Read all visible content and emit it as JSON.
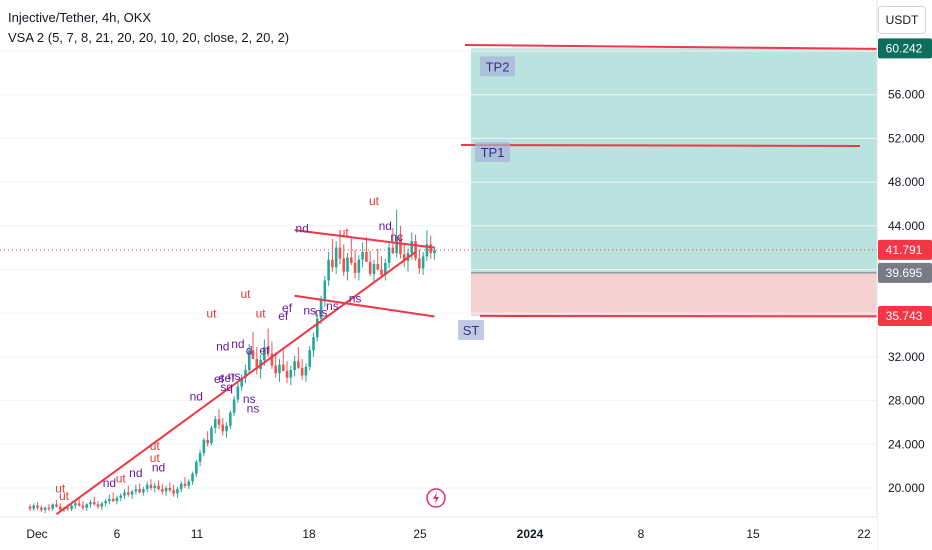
{
  "header": {
    "symbol_line": "Injective/Tether, 4h, OKX",
    "indicator_line": "VSA 2 (5, 7, 8, 21, 20, 20, 10, 20, close, 2, 20, 2)",
    "currency": "USDT"
  },
  "colors": {
    "up": "#26a69a",
    "down": "#ef5350",
    "trendline": "#f23645",
    "target_zone": "#b2dfdb",
    "stop_zone": "#f6cfd0",
    "vsa_red": "#e53935",
    "vsa_purple": "#6a1b9a"
  },
  "chart_data": {
    "type": "candlestick",
    "x_axis": {
      "ticks": [
        "Dec",
        "6",
        "11",
        "18",
        "25",
        "2024",
        "8",
        "15",
        "22"
      ]
    },
    "y_axis": {
      "ylim": [
        17.8,
        63.0
      ],
      "ticks": [
        "20.000",
        "24.000",
        "28.000",
        "32.000",
        "36.000",
        "40.000",
        "44.000",
        "48.000",
        "52.000",
        "56.000",
        "60.000"
      ]
    },
    "price_labels": [
      {
        "value": 60.242,
        "text": "60.242",
        "bg": "#0d6e5e"
      },
      {
        "value": 41.791,
        "text": "41.791",
        "bg": "#f23645"
      },
      {
        "value": 39.695,
        "text": "39.695",
        "bg": "#787b86"
      },
      {
        "value": 35.743,
        "text": "35.743",
        "bg": "#f23645"
      }
    ],
    "position": {
      "entry": 39.695,
      "target": 60.242,
      "stop": 35.743
    },
    "annotations": [
      {
        "text": "TP2",
        "value": 60.242
      },
      {
        "text": "TP1",
        "value": 51.3
      },
      {
        "text": "ST",
        "value": 35.743
      }
    ],
    "candles": [
      [
        18.3,
        18.5,
        17.9,
        18.1
      ],
      [
        18.1,
        18.6,
        17.9,
        18.4
      ],
      [
        18.4,
        18.7,
        18.0,
        18.2
      ],
      [
        18.2,
        18.4,
        17.8,
        18.0
      ],
      [
        18.0,
        18.3,
        17.7,
        18.2
      ],
      [
        18.2,
        18.5,
        17.9,
        18.1
      ],
      [
        18.1,
        18.6,
        17.9,
        18.5
      ],
      [
        18.5,
        18.9,
        18.2,
        18.3
      ],
      [
        18.3,
        18.6,
        17.9,
        18.0
      ],
      [
        18.0,
        18.3,
        17.8,
        18.2
      ],
      [
        18.2,
        18.4,
        17.9,
        18.1
      ],
      [
        18.1,
        18.5,
        17.9,
        18.4
      ],
      [
        18.4,
        18.8,
        18.1,
        18.6
      ],
      [
        18.6,
        19.1,
        18.3,
        18.4
      ],
      [
        18.4,
        18.8,
        18.0,
        18.2
      ],
      [
        18.2,
        18.6,
        17.9,
        18.5
      ],
      [
        18.5,
        18.9,
        18.2,
        18.7
      ],
      [
        18.7,
        19.2,
        18.4,
        18.5
      ],
      [
        18.5,
        18.8,
        18.1,
        18.3
      ],
      [
        18.3,
        18.7,
        18.0,
        18.6
      ],
      [
        18.6,
        19.0,
        18.3,
        18.8
      ],
      [
        18.8,
        19.4,
        18.5,
        19.0
      ],
      [
        19.0,
        19.6,
        18.7,
        18.8
      ],
      [
        18.8,
        19.3,
        18.5,
        19.1
      ],
      [
        19.1,
        19.5,
        18.8,
        19.3
      ],
      [
        19.3,
        19.9,
        19.0,
        19.6
      ],
      [
        19.6,
        20.2,
        19.2,
        19.4
      ],
      [
        19.4,
        19.8,
        19.0,
        19.7
      ],
      [
        19.7,
        20.3,
        19.4,
        19.9
      ],
      [
        19.9,
        20.4,
        19.5,
        19.6
      ],
      [
        19.6,
        20.1,
        19.3,
        19.9
      ],
      [
        19.9,
        20.6,
        19.6,
        20.3
      ],
      [
        20.3,
        20.8,
        19.8,
        20.0
      ],
      [
        20.0,
        20.5,
        19.6,
        20.2
      ],
      [
        20.2,
        20.7,
        19.8,
        19.9
      ],
      [
        19.9,
        20.4,
        19.4,
        19.7
      ],
      [
        19.7,
        20.2,
        19.3,
        20.0
      ],
      [
        20.0,
        20.5,
        19.6,
        19.8
      ],
      [
        19.8,
        20.3,
        19.2,
        19.5
      ],
      [
        19.5,
        20.1,
        19.1,
        19.9
      ],
      [
        19.9,
        20.6,
        19.6,
        20.4
      ],
      [
        20.4,
        21.0,
        20.0,
        20.2
      ],
      [
        20.2,
        20.8,
        19.9,
        20.6
      ],
      [
        20.6,
        21.5,
        20.3,
        21.3
      ],
      [
        21.3,
        22.6,
        21.0,
        22.4
      ],
      [
        22.4,
        23.5,
        22.0,
        23.2
      ],
      [
        23.2,
        24.6,
        22.9,
        24.4
      ],
      [
        24.4,
        25.2,
        23.8,
        24.1
      ],
      [
        24.1,
        25.7,
        23.9,
        25.5
      ],
      [
        25.5,
        26.6,
        25.0,
        26.3
      ],
      [
        26.3,
        27.2,
        25.4,
        25.8
      ],
      [
        25.8,
        26.4,
        24.8,
        25.2
      ],
      [
        25.2,
        26.0,
        24.6,
        25.7
      ],
      [
        25.7,
        27.1,
        25.4,
        26.9
      ],
      [
        26.9,
        28.4,
        26.6,
        28.1
      ],
      [
        28.1,
        29.6,
        27.8,
        29.3
      ],
      [
        29.3,
        30.4,
        28.9,
        30.1
      ],
      [
        30.1,
        31.3,
        29.6,
        30.8
      ],
      [
        30.8,
        33.2,
        30.5,
        32.6
      ],
      [
        32.6,
        34.3,
        31.9,
        31.8
      ],
      [
        31.8,
        32.9,
        30.4,
        30.9
      ],
      [
        30.9,
        32.2,
        30.0,
        31.7
      ],
      [
        31.7,
        33.6,
        31.2,
        32.9
      ],
      [
        32.9,
        34.6,
        32.0,
        32.3
      ],
      [
        32.3,
        33.4,
        30.9,
        31.2
      ],
      [
        31.2,
        32.4,
        30.1,
        30.5
      ],
      [
        30.5,
        31.8,
        29.7,
        31.3
      ],
      [
        31.3,
        32.6,
        30.8,
        30.7
      ],
      [
        30.7,
        31.6,
        29.6,
        30.1
      ],
      [
        30.1,
        31.2,
        29.4,
        30.8
      ],
      [
        30.8,
        32.1,
        30.2,
        31.6
      ],
      [
        31.6,
        32.9,
        30.9,
        31.0
      ],
      [
        31.0,
        31.8,
        29.9,
        30.3
      ],
      [
        30.3,
        31.4,
        29.7,
        31.1
      ],
      [
        31.1,
        33.0,
        30.8,
        32.6
      ],
      [
        32.6,
        34.2,
        32.0,
        33.8
      ],
      [
        33.8,
        35.9,
        33.4,
        35.5
      ],
      [
        35.5,
        37.6,
        35.0,
        37.2
      ],
      [
        37.2,
        39.4,
        36.6,
        39.0
      ],
      [
        39.0,
        41.6,
        38.5,
        40.9
      ],
      [
        40.9,
        42.8,
        39.8,
        40.2
      ],
      [
        40.2,
        42.6,
        39.6,
        42.0
      ],
      [
        42.0,
        43.4,
        40.5,
        41.0
      ],
      [
        41.0,
        42.3,
        39.4,
        39.8
      ],
      [
        39.8,
        41.5,
        39.0,
        41.1
      ],
      [
        41.1,
        42.9,
        40.4,
        40.6
      ],
      [
        40.6,
        41.8,
        39.2,
        39.7
      ],
      [
        39.7,
        41.3,
        39.0,
        40.9
      ],
      [
        40.9,
        42.5,
        40.2,
        41.6
      ],
      [
        41.6,
        43.0,
        40.8,
        40.7
      ],
      [
        40.7,
        41.7,
        39.4,
        39.6
      ],
      [
        39.6,
        40.9,
        38.9,
        40.5
      ],
      [
        40.5,
        41.9,
        39.9,
        40.0
      ],
      [
        40.0,
        41.2,
        39.2,
        39.5
      ],
      [
        39.5,
        41.0,
        39.0,
        40.6
      ],
      [
        40.6,
        42.4,
        40.1,
        42.0
      ],
      [
        42.0,
        43.8,
        41.4,
        41.5
      ],
      [
        41.5,
        45.5,
        41.1,
        43.0
      ],
      [
        43.0,
        44.0,
        41.0,
        41.4
      ],
      [
        41.4,
        42.3,
        40.2,
        40.8
      ],
      [
        40.8,
        41.9,
        39.8,
        41.5
      ],
      [
        41.5,
        43.4,
        40.9,
        42.6
      ],
      [
        42.6,
        43.2,
        40.8,
        41.0
      ],
      [
        41.0,
        41.8,
        39.6,
        40.1
      ],
      [
        40.1,
        41.6,
        39.5,
        41.2
      ],
      [
        41.2,
        43.6,
        40.8,
        42.3
      ],
      [
        42.3,
        43.1,
        41.0,
        41.5
      ],
      [
        41.5,
        42.1,
        40.9,
        41.79
      ]
    ],
    "vsa_labels": [
      {
        "text": "ut",
        "candle": 8,
        "value": 19.6,
        "color": "red"
      },
      {
        "text": "ut",
        "candle": 9,
        "value": 18.9,
        "color": "red"
      },
      {
        "text": "nd",
        "candle": 21,
        "value": 20.1,
        "color": "purple"
      },
      {
        "text": "ut",
        "candle": 24,
        "value": 20.5,
        "color": "red"
      },
      {
        "text": "nd",
        "candle": 28,
        "value": 21.0,
        "color": "purple"
      },
      {
        "text": "nd",
        "candle": 34,
        "value": 21.5,
        "color": "purple"
      },
      {
        "text": "ut",
        "candle": 33,
        "value": 22.4,
        "color": "red"
      },
      {
        "text": "ut",
        "candle": 33,
        "value": 23.5,
        "color": "red"
      },
      {
        "text": "nd",
        "candle": 44,
        "value": 28.0,
        "color": "purple"
      },
      {
        "text": "ut",
        "candle": 48,
        "value": 35.6,
        "color": "red"
      },
      {
        "text": "nd",
        "candle": 51,
        "value": 32.6,
        "color": "purple"
      },
      {
        "text": "nd",
        "candle": 55,
        "value": 32.8,
        "color": "purple"
      },
      {
        "text": "d",
        "candle": 58,
        "value": 32.2,
        "color": "purple"
      },
      {
        "text": "ef",
        "candle": 62,
        "value": 32.2,
        "color": "purple"
      },
      {
        "text": "ut",
        "candle": 57,
        "value": 37.4,
        "color": "red"
      },
      {
        "text": "ut",
        "candle": 61,
        "value": 35.6,
        "color": "red"
      },
      {
        "text": "ef",
        "candle": 50,
        "value": 29.6,
        "color": "purple"
      },
      {
        "text": "sef",
        "candle": 52,
        "value": 29.7,
        "color": "purple"
      },
      {
        "text": "ns",
        "candle": 54,
        "value": 29.9,
        "color": "purple"
      },
      {
        "text": "sq",
        "candle": 52,
        "value": 28.9,
        "color": "purple"
      },
      {
        "text": "ns",
        "candle": 58,
        "value": 27.8,
        "color": "purple"
      },
      {
        "text": "ns",
        "candle": 59,
        "value": 26.9,
        "color": "purple"
      },
      {
        "text": "ef",
        "candle": 68,
        "value": 36.1,
        "color": "purple"
      },
      {
        "text": "ef",
        "candle": 67,
        "value": 35.4,
        "color": "purple"
      },
      {
        "text": "ns",
        "candle": 74,
        "value": 35.9,
        "color": "purple"
      },
      {
        "text": "ns",
        "candle": 77,
        "value": 35.7,
        "color": "purple"
      },
      {
        "text": "ns",
        "candle": 80,
        "value": 36.3,
        "color": "purple"
      },
      {
        "text": "ns",
        "candle": 86,
        "value": 37.0,
        "color": "purple"
      },
      {
        "text": "ut",
        "candle": 83,
        "value": 43.0,
        "color": "red"
      },
      {
        "text": "ut",
        "candle": 91,
        "value": 45.9,
        "color": "red"
      },
      {
        "text": "nd",
        "candle": 94,
        "value": 43.6,
        "color": "purple"
      },
      {
        "text": "nd",
        "candle": 72,
        "value": 43.4,
        "color": "purple"
      },
      {
        "text": "nc",
        "candle": 97,
        "value": 42.6,
        "color": "purple"
      }
    ],
    "trendlines": [
      {
        "from": [
          7,
          17.6
        ],
        "to": [
          102,
          41.6
        ]
      },
      {
        "from": [
          70,
          43.6
        ],
        "to": [
          107,
          42.0
        ]
      },
      {
        "from": [
          70,
          37.6
        ],
        "to": [
          107,
          35.7
        ]
      }
    ],
    "flash_icon": "lightning-icon"
  }
}
